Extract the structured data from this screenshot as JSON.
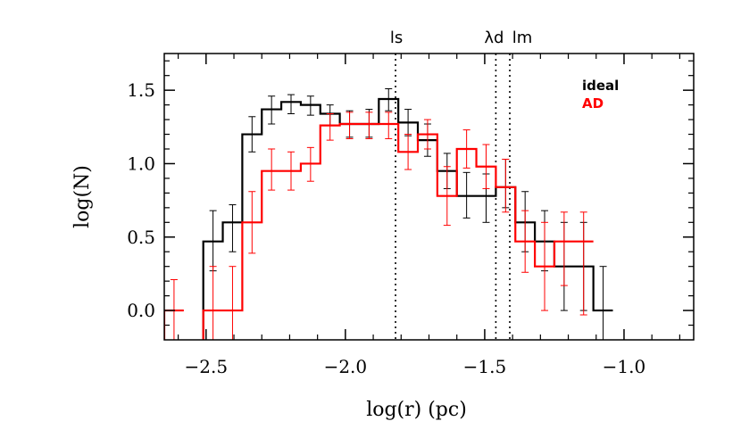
{
  "chart_data": {
    "type": "histogram",
    "xlabel": "log(r) (pc)",
    "ylabel": "log(N)",
    "xlim": [
      -2.65,
      -0.75
    ],
    "ylim": [
      -0.2,
      1.75
    ],
    "x_ticks": [
      {
        "value": -2.5,
        "label": "−2.5"
      },
      {
        "value": -2.0,
        "label": "−2.0"
      },
      {
        "value": -1.5,
        "label": "−1.5"
      },
      {
        "value": -1.0,
        "label": "−1.0"
      }
    ],
    "y_ticks": [
      {
        "value": 0.0,
        "label": "0.0"
      },
      {
        "value": 0.5,
        "label": "0.5"
      },
      {
        "value": 1.0,
        "label": "1.0"
      },
      {
        "value": 1.5,
        "label": "1.5"
      }
    ],
    "x_minor_step": 0.1,
    "y_minor_step": 0.1,
    "reference_lines": [
      {
        "x": -1.82,
        "label": "ls"
      },
      {
        "x": -1.46,
        "label": "λd"
      },
      {
        "x": -1.41,
        "label": "lm"
      }
    ],
    "series": [
      {
        "name": "ideal",
        "color": "#000000",
        "bins": [
          {
            "x0": -2.51,
            "x1": -2.44,
            "y": 0.47,
            "err_lo": 0.2,
            "err_hi": 0.21
          },
          {
            "x0": -2.44,
            "x1": -2.37,
            "y": 0.6,
            "err_lo": 0.2,
            "err_hi": 0.12
          },
          {
            "x0": -2.37,
            "x1": -2.3,
            "y": 1.2,
            "err_lo": 0.12,
            "err_hi": 0.12
          },
          {
            "x0": -2.3,
            "x1": -2.23,
            "y": 1.37,
            "err_lo": 0.1,
            "err_hi": 0.09
          },
          {
            "x0": -2.23,
            "x1": -2.16,
            "y": 1.42,
            "err_lo": 0.08,
            "err_hi": 0.05
          },
          {
            "x0": -2.16,
            "x1": -2.09,
            "y": 1.4,
            "err_lo": 0.07,
            "err_hi": 0.06
          },
          {
            "x0": -2.09,
            "x1": -2.02,
            "y": 1.34,
            "err_lo": 0.08,
            "err_hi": 0.06
          },
          {
            "x0": -2.02,
            "x1": -1.95,
            "y": 1.27,
            "err_lo": 0.09,
            "err_hi": 0.09
          },
          {
            "x0": -1.95,
            "x1": -1.88,
            "y": 1.27,
            "err_lo": 0.09,
            "err_hi": 0.1
          },
          {
            "x0": -1.88,
            "x1": -1.81,
            "y": 1.44,
            "err_lo": 0.08,
            "err_hi": 0.07
          },
          {
            "x0": -1.81,
            "x1": -1.74,
            "y": 1.28,
            "err_lo": 0.09,
            "err_hi": 0.09
          },
          {
            "x0": -1.74,
            "x1": -1.67,
            "y": 1.16,
            "err_lo": 0.11,
            "err_hi": 0.11
          },
          {
            "x0": -1.67,
            "x1": -1.6,
            "y": 0.95,
            "err_lo": 0.12,
            "err_hi": 0.12
          },
          {
            "x0": -1.6,
            "x1": -1.53,
            "y": 0.78,
            "err_lo": 0.15,
            "err_hi": 0.16
          },
          {
            "x0": -1.53,
            "x1": -1.46,
            "y": 0.78,
            "err_lo": 0.18,
            "err_hi": 0.15
          },
          {
            "x0": -1.46,
            "x1": -1.39,
            "y": 0.84,
            "err_lo": 0.14,
            "err_hi": 0.19
          },
          {
            "x0": -1.39,
            "x1": -1.32,
            "y": 0.6,
            "err_lo": 0.2,
            "err_hi": 0.21
          },
          {
            "x0": -1.32,
            "x1": -1.25,
            "y": 0.47,
            "err_lo": 0.2,
            "err_hi": 0.21
          },
          {
            "x0": -1.25,
            "x1": -1.18,
            "y": 0.3,
            "err_lo": 0.3,
            "err_hi": 0.3
          },
          {
            "x0": -1.18,
            "x1": -1.11,
            "y": 0.3,
            "err_lo": 0.3,
            "err_hi": 0.3
          },
          {
            "x0": -1.11,
            "x1": -1.04,
            "y": 0.0,
            "err_lo": 0.3,
            "err_hi": 0.3
          }
        ]
      },
      {
        "name": "AD",
        "color": "#ff0000",
        "bins": [
          {
            "x0": -2.65,
            "x1": -2.58,
            "y": 0.0,
            "err_lo": 0.2,
            "err_hi": 0.21
          },
          {
            "x0": -2.51,
            "x1": -2.44,
            "y": 0.0,
            "err_lo": 0.3,
            "err_hi": 0.3
          },
          {
            "x0": -2.44,
            "x1": -2.37,
            "y": 0.0,
            "err_lo": 0.3,
            "err_hi": 0.3
          },
          {
            "x0": -2.37,
            "x1": -2.3,
            "y": 0.6,
            "err_lo": 0.21,
            "err_hi": 0.21
          },
          {
            "x0": -2.3,
            "x1": -2.23,
            "y": 0.95,
            "err_lo": 0.13,
            "err_hi": 0.15
          },
          {
            "x0": -2.23,
            "x1": -2.16,
            "y": 0.95,
            "err_lo": 0.13,
            "err_hi": 0.13
          },
          {
            "x0": -2.16,
            "x1": -2.09,
            "y": 1.0,
            "err_lo": 0.12,
            "err_hi": 0.11
          },
          {
            "x0": -2.09,
            "x1": -2.02,
            "y": 1.26,
            "err_lo": 0.1,
            "err_hi": 0.08
          },
          {
            "x0": -2.02,
            "x1": -1.95,
            "y": 1.27,
            "err_lo": 0.1,
            "err_hi": 0.08
          },
          {
            "x0": -1.95,
            "x1": -1.88,
            "y": 1.27,
            "err_lo": 0.1,
            "err_hi": 0.08
          },
          {
            "x0": -1.88,
            "x1": -1.81,
            "y": 1.27,
            "err_lo": 0.1,
            "err_hi": 0.08
          },
          {
            "x0": -1.81,
            "x1": -1.74,
            "y": 1.08,
            "err_lo": 0.12,
            "err_hi": 0.12
          },
          {
            "x0": -1.74,
            "x1": -1.67,
            "y": 1.2,
            "err_lo": 0.1,
            "err_hi": 0.1
          },
          {
            "x0": -1.67,
            "x1": -1.6,
            "y": 0.78,
            "err_lo": 0.2,
            "err_hi": 0.2
          },
          {
            "x0": -1.6,
            "x1": -1.53,
            "y": 1.1,
            "err_lo": 0.13,
            "err_hi": 0.13
          },
          {
            "x0": -1.53,
            "x1": -1.46,
            "y": 0.98,
            "err_lo": 0.15,
            "err_hi": 0.15
          },
          {
            "x0": -1.46,
            "x1": -1.39,
            "y": 0.84,
            "err_lo": 0.17,
            "err_hi": 0.19
          },
          {
            "x0": -1.39,
            "x1": -1.32,
            "y": 0.47,
            "err_lo": 0.21,
            "err_hi": 0.21
          },
          {
            "x0": -1.32,
            "x1": -1.25,
            "y": 0.3,
            "err_lo": 0.3,
            "err_hi": 0.3
          },
          {
            "x0": -1.25,
            "x1": -1.18,
            "y": 0.47,
            "err_lo": 0.3,
            "err_hi": 0.2
          },
          {
            "x0": -1.18,
            "x1": -1.11,
            "y": 0.47,
            "err_lo": 0.5,
            "err_hi": 0.2
          }
        ]
      }
    ],
    "legend": {
      "position": "top-right",
      "entries": [
        {
          "label": "ideal",
          "color": "#000000"
        },
        {
          "label": "AD",
          "color": "#ff0000"
        }
      ]
    }
  }
}
